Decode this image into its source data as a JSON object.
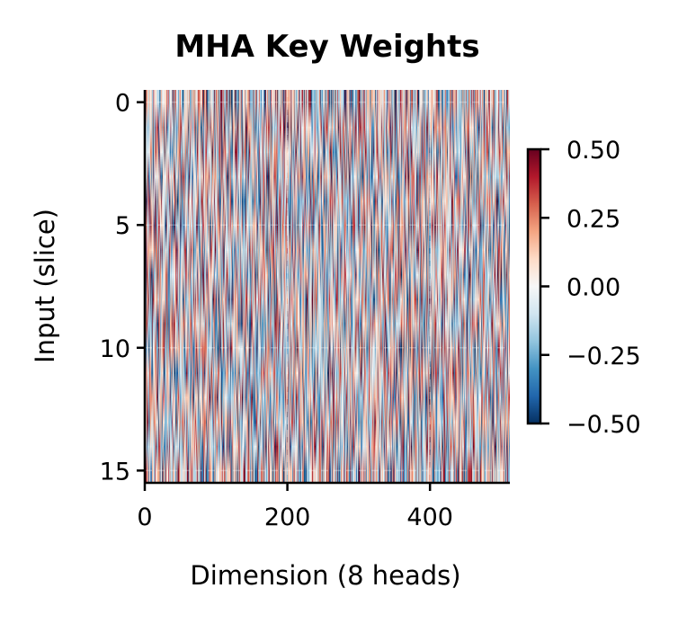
{
  "chart_data": {
    "type": "heatmap",
    "title": "MHA Key Weights",
    "xlabel": "Dimension (8 heads)",
    "ylabel": "Input (slice)",
    "shape": [
      16,
      512
    ],
    "xlim": [
      0,
      512
    ],
    "ylim": [
      15.5,
      -0.5
    ],
    "xticks": [
      "0",
      "200",
      "400"
    ],
    "xtick_values": [
      0,
      200,
      400
    ],
    "yticks": [
      "0",
      "5",
      "10",
      "15"
    ],
    "ytick_values": [
      0,
      5,
      10,
      15
    ],
    "colormap": "RdBu_r",
    "vmin": -0.5,
    "vmax": 0.5,
    "colorbar": {
      "ticks": [
        "0.50",
        "0.25",
        "0.00",
        "−0.25",
        "−0.50"
      ],
      "tick_values": [
        0.5,
        0.25,
        0.0,
        -0.25,
        -0.5
      ]
    },
    "grid": true,
    "colors": {
      "low": "#053061",
      "mid": "#f7f7f7",
      "high": "#67001f"
    }
  }
}
